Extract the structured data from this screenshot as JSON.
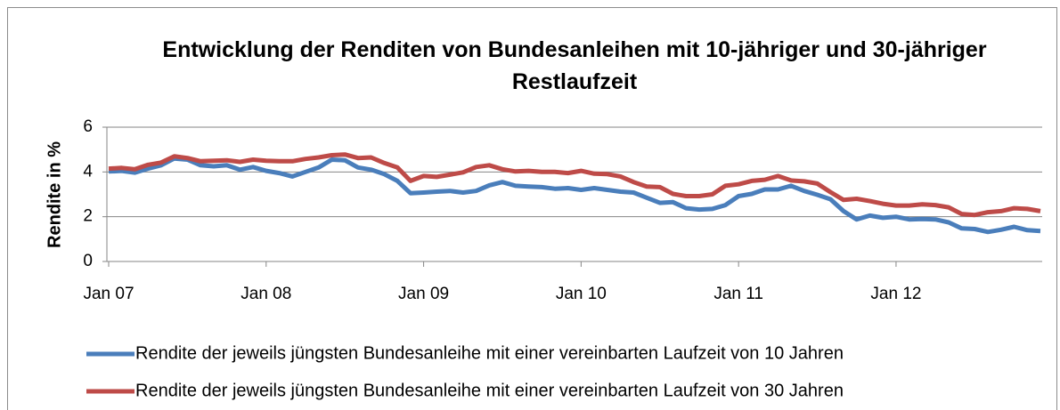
{
  "chart_data": {
    "type": "line",
    "title": "Entwicklung der Renditen von Bundesanleihen mit 10-jähriger und 30-jähriger Restlaufzeit",
    "y_label": "Rendite in %",
    "categories": [
      "Jan 07",
      null,
      null,
      null,
      null,
      null,
      null,
      null,
      null,
      null,
      null,
      null,
      "Jan 08",
      null,
      null,
      null,
      null,
      null,
      null,
      null,
      null,
      null,
      null,
      null,
      "Jan 09",
      null,
      null,
      null,
      null,
      null,
      null,
      null,
      null,
      null,
      null,
      null,
      "Jan 10",
      null,
      null,
      null,
      null,
      null,
      null,
      null,
      null,
      null,
      null,
      null,
      "Jan 11",
      null,
      null,
      null,
      null,
      null,
      null,
      null,
      null,
      null,
      null,
      null,
      "Jan 12",
      null,
      null,
      null,
      null,
      null,
      null,
      null,
      null,
      null,
      null,
      null
    ],
    "series": [
      {
        "name": "Rendite der jeweils jüngsten Bundesanleihe mit einer vereinbarten Laufzeit von 10 Jahren",
        "color": "#4a7ebb",
        "values": [
          4.02,
          4.05,
          3.97,
          4.15,
          4.3,
          4.6,
          4.55,
          4.3,
          4.25,
          4.3,
          4.1,
          4.22,
          4.05,
          3.95,
          3.8,
          4.0,
          4.2,
          4.55,
          4.52,
          4.2,
          4.1,
          3.9,
          3.6,
          3.05,
          3.08,
          3.12,
          3.15,
          3.08,
          3.15,
          3.4,
          3.55,
          3.38,
          3.35,
          3.32,
          3.25,
          3.28,
          3.2,
          3.28,
          3.2,
          3.12,
          3.08,
          2.85,
          2.62,
          2.65,
          2.38,
          2.32,
          2.35,
          2.52,
          2.92,
          3.02,
          3.22,
          3.22,
          3.38,
          3.15,
          2.98,
          2.78,
          2.25,
          1.88,
          2.05,
          1.95,
          2.0,
          1.88,
          1.9,
          1.88,
          1.75,
          1.48,
          1.45,
          1.32,
          1.42,
          1.55,
          1.4,
          1.36
        ]
      },
      {
        "name": "Rendite der jeweils jüngsten Bundesanleihe mit einer vereinbarten Laufzeit von 30 Jahren",
        "color": "#be4b48",
        "values": [
          4.15,
          4.18,
          4.12,
          4.32,
          4.42,
          4.7,
          4.62,
          4.48,
          4.5,
          4.52,
          4.45,
          4.55,
          4.5,
          4.48,
          4.48,
          4.58,
          4.65,
          4.75,
          4.78,
          4.62,
          4.65,
          4.4,
          4.2,
          3.6,
          3.82,
          3.78,
          3.88,
          3.98,
          4.22,
          4.3,
          4.12,
          4.02,
          4.05,
          4.0,
          4.0,
          3.95,
          4.05,
          3.92,
          3.9,
          3.8,
          3.55,
          3.35,
          3.32,
          3.02,
          2.92,
          2.92,
          3.0,
          3.38,
          3.45,
          3.6,
          3.65,
          3.82,
          3.62,
          3.58,
          3.48,
          3.1,
          2.75,
          2.8,
          2.7,
          2.58,
          2.5,
          2.5,
          2.55,
          2.52,
          2.42,
          2.12,
          2.08,
          2.2,
          2.25,
          2.38,
          2.35,
          2.25
        ]
      }
    ],
    "ylim": [
      0,
      6
    ],
    "yticks": [
      0,
      2,
      4,
      6
    ],
    "grid": true,
    "legend": "bottom"
  }
}
